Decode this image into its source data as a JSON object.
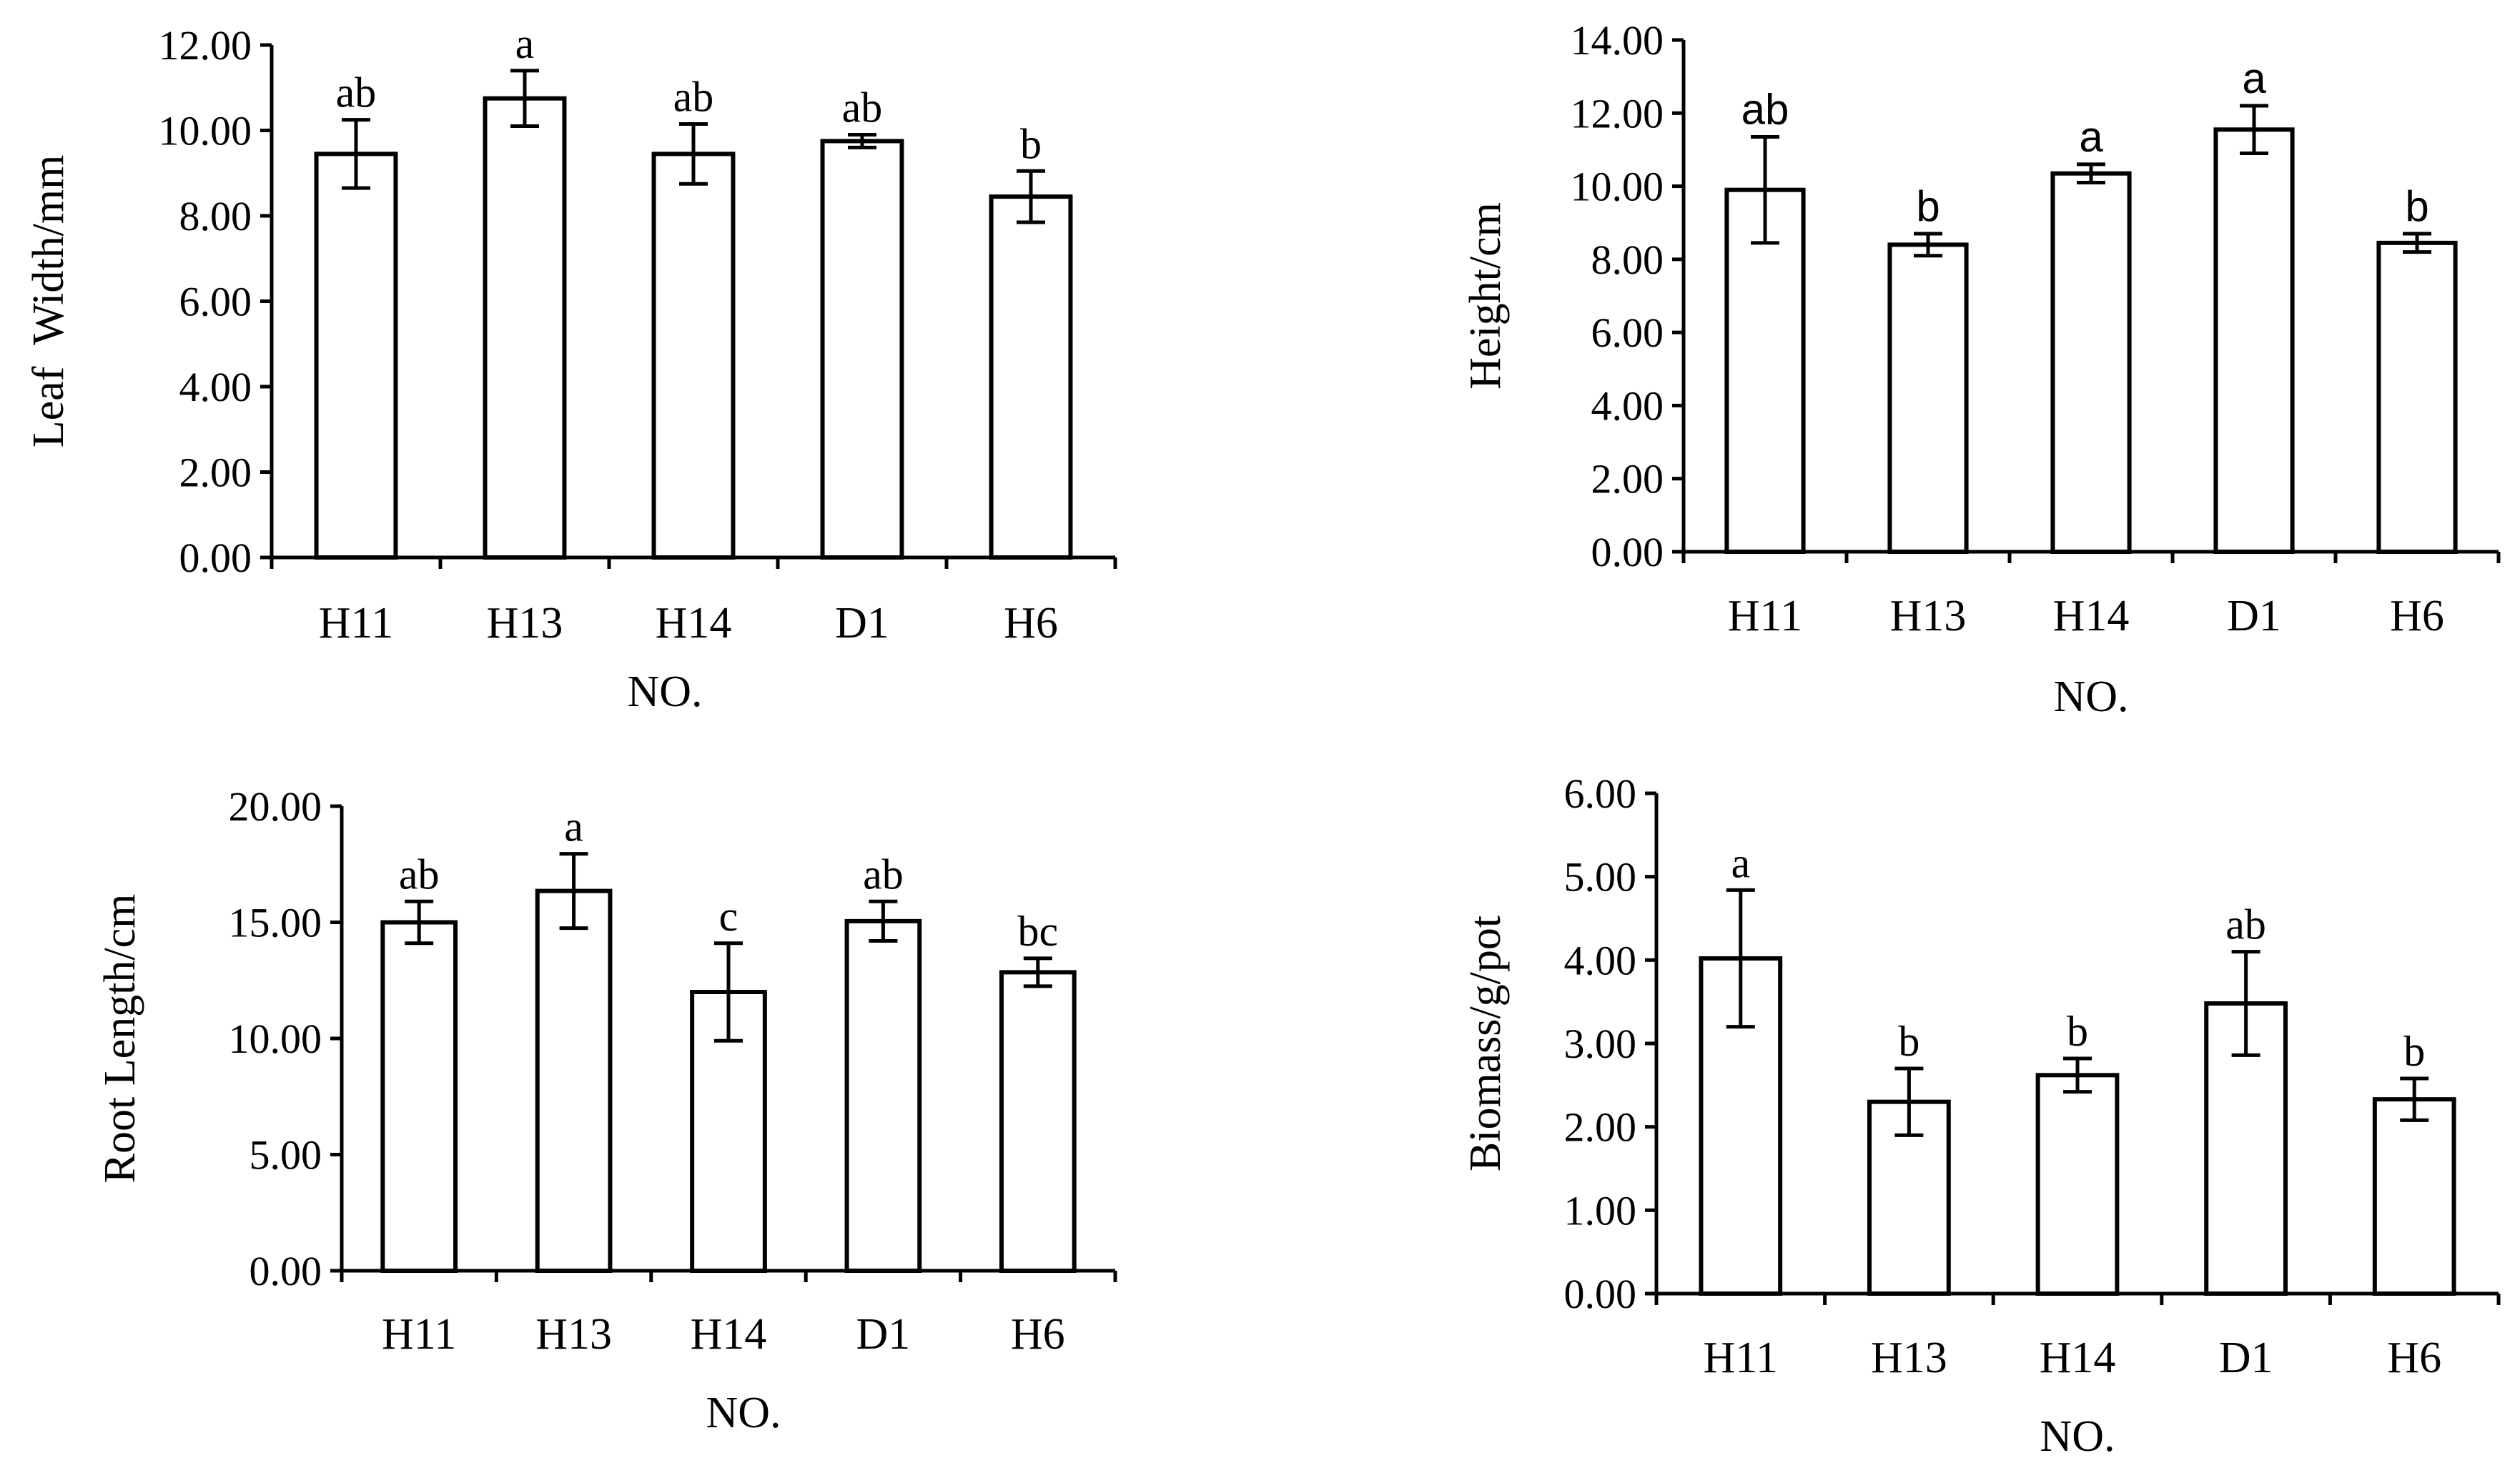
{
  "chart_data": [
    {
      "id": "leaf-width",
      "type": "bar",
      "categories": [
        "H11",
        "H13",
        "H14",
        "D1",
        "H6"
      ],
      "values": [
        9.45,
        10.75,
        9.45,
        9.75,
        8.45
      ],
      "errors": [
        0.8,
        0.65,
        0.7,
        0.15,
        0.6
      ],
      "significance": [
        "ab",
        "a",
        "ab",
        "ab",
        "b"
      ],
      "ylim": [
        0,
        12
      ],
      "yticks": [
        "0.00",
        "2.00",
        "4.00",
        "6.00",
        "8.00",
        "10.00",
        "12.00"
      ],
      "ylabel": "Leaf  Width/mm",
      "xlabel": "NO."
    },
    {
      "id": "height",
      "type": "bar",
      "categories": [
        "H11",
        "H13",
        "H14",
        "D1",
        "H6"
      ],
      "values": [
        9.9,
        8.4,
        10.35,
        11.55,
        8.45
      ],
      "errors": [
        1.45,
        0.3,
        0.25,
        0.65,
        0.25
      ],
      "significance": [
        "ab",
        "b",
        "a",
        "a",
        "b"
      ],
      "ylim": [
        0,
        14
      ],
      "yticks": [
        "0.00",
        "2.00",
        "4.00",
        "6.00",
        "8.00",
        "10.00",
        "12.00",
        "14.00"
      ],
      "ylabel": "Height/cm",
      "xlabel": "NO."
    },
    {
      "id": "root-length",
      "type": "bar",
      "categories": [
        "H11",
        "H13",
        "H14",
        "D1",
        "H6"
      ],
      "values": [
        15.0,
        16.35,
        12.0,
        15.05,
        12.85
      ],
      "errors": [
        0.9,
        1.6,
        2.1,
        0.85,
        0.6
      ],
      "significance": [
        "ab",
        "a",
        "c",
        "ab",
        "bc"
      ],
      "ylim": [
        0,
        20
      ],
      "yticks": [
        "0.00",
        "5.00",
        "10.00",
        "15.00",
        "20.00"
      ],
      "ylabel": "Root Length/cm",
      "xlabel": "NO."
    },
    {
      "id": "biomass",
      "type": "bar",
      "categories": [
        "H11",
        "H13",
        "H14",
        "D1",
        "H6"
      ],
      "values": [
        4.02,
        2.3,
        2.62,
        3.48,
        2.33
      ],
      "errors": [
        0.82,
        0.4,
        0.2,
        0.62,
        0.25
      ],
      "significance": [
        "a",
        "b",
        "b",
        "ab",
        "b"
      ],
      "ylim": [
        0,
        6
      ],
      "yticks": [
        "0.00",
        "1.00",
        "2.00",
        "3.00",
        "4.00",
        "5.00",
        "6.00"
      ],
      "ylabel": "Biomass/g/pot",
      "xlabel": "NO."
    }
  ]
}
